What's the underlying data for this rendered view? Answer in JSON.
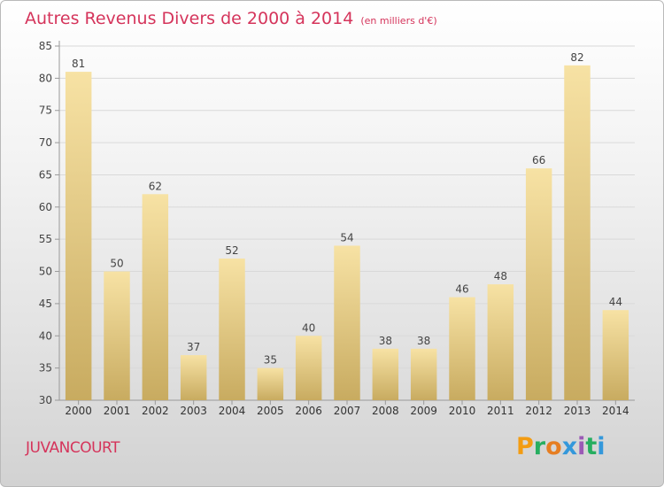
{
  "title": "Autres Revenus Divers de 2000 à 2014",
  "subtitle": "(en milliers d'€)",
  "location": "JUVANCOURT",
  "brand": {
    "letters": [
      "P",
      "r",
      "o",
      "x",
      "i",
      "t",
      "i"
    ],
    "colors": [
      "#f39c12",
      "#27ae60",
      "#e67e22",
      "#3498db",
      "#9b59b6",
      "#27ae60",
      "#3498db"
    ]
  },
  "chart_data": {
    "type": "bar",
    "categories": [
      "2000",
      "2001",
      "2002",
      "2003",
      "2004",
      "2005",
      "2006",
      "2007",
      "2008",
      "2009",
      "2010",
      "2011",
      "2012",
      "2013",
      "2014"
    ],
    "values": [
      81,
      50,
      62,
      37,
      52,
      35,
      40,
      54,
      38,
      38,
      46,
      48,
      66,
      82,
      44
    ],
    "ylim": [
      30,
      85
    ],
    "yticks": [
      30,
      35,
      40,
      45,
      50,
      55,
      60,
      65,
      70,
      75,
      80,
      85
    ],
    "grid": true,
    "bar_color_top": "#f7e2a4",
    "bar_color_bottom": "#c8ab60",
    "title_color": "#d5345b"
  }
}
